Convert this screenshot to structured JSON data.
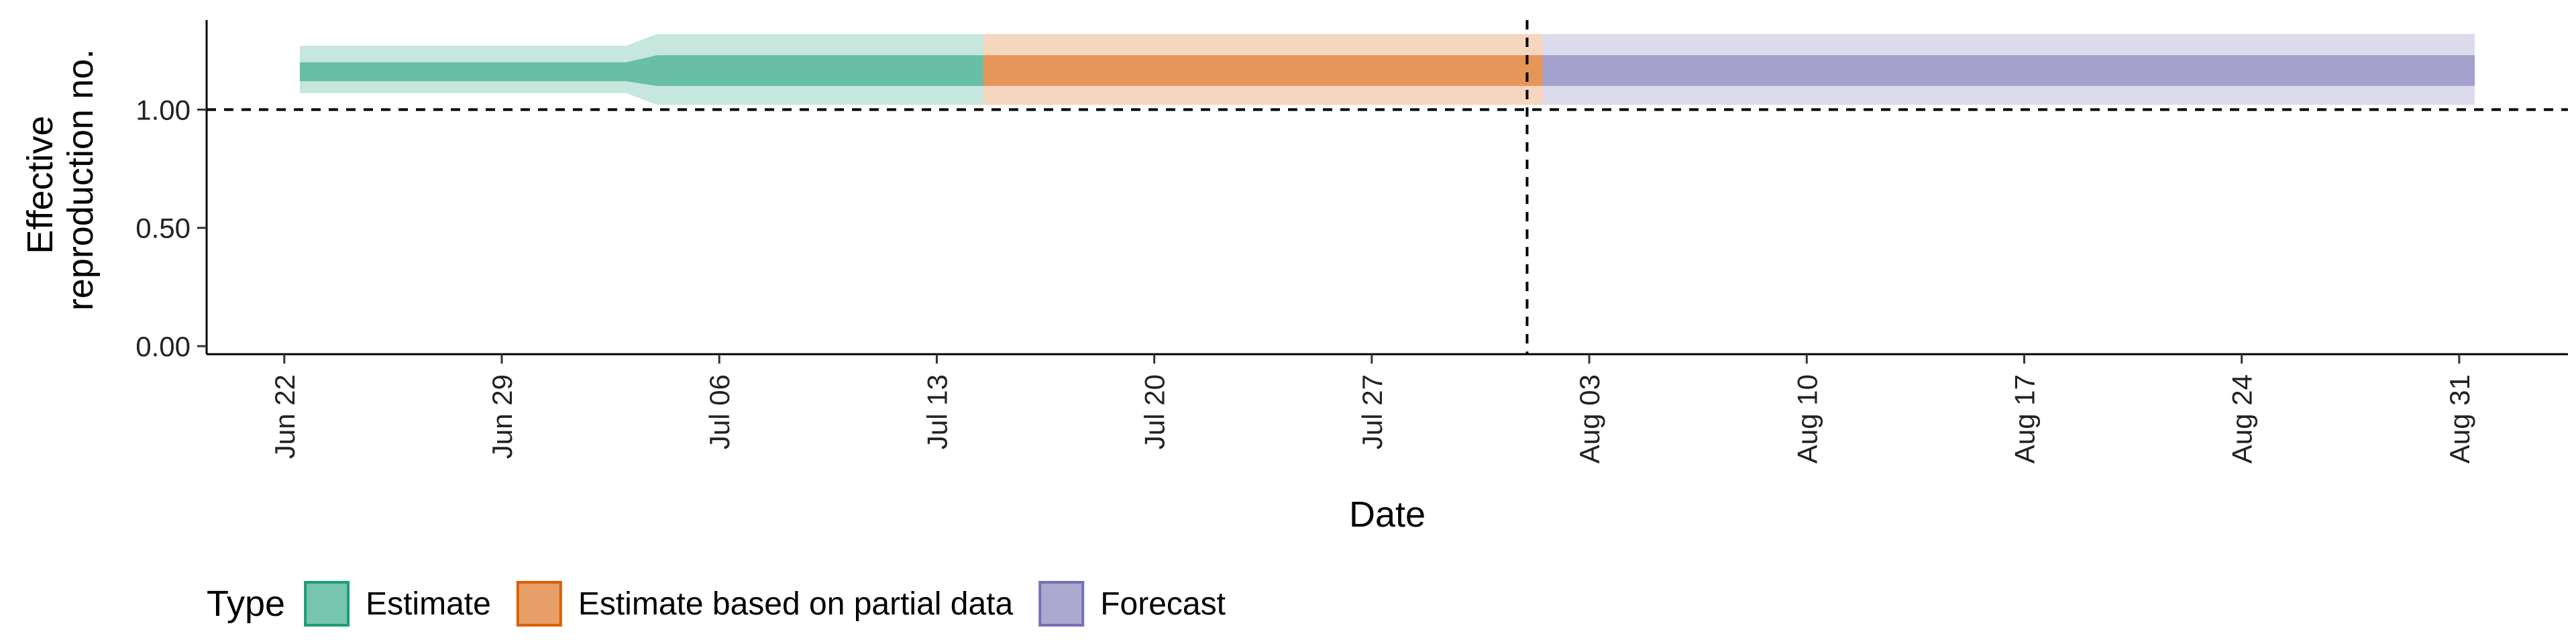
{
  "chart_data": {
    "type": "area",
    "xlabel": "Date",
    "ylabel_lines": [
      "Effective",
      "reproduction no."
    ],
    "ylim": [
      0,
      1.35
    ],
    "y_ticks": [
      0.0,
      0.5,
      1.0
    ],
    "y_tick_labels": [
      "0.00",
      "0.50",
      "1.00"
    ],
    "x_ticks": [
      "2020-06-22",
      "2020-06-29",
      "2020-07-06",
      "2020-07-13",
      "2020-07-20",
      "2020-07-27",
      "2020-08-03",
      "2020-08-10",
      "2020-08-17",
      "2020-08-24",
      "2020-08-31"
    ],
    "x_tick_labels": [
      "Jun 22",
      "Jun 29",
      "Jul 06",
      "Jul 13",
      "Jul 20",
      "Jul 27",
      "Aug 03",
      "Aug 10",
      "Aug 17",
      "Aug 24",
      "Aug 31"
    ],
    "xlim": [
      "2020-06-19.5",
      "2020-09-03.5"
    ],
    "reference_line_y": 1.0,
    "reference_line_date": "2020-08-01",
    "legend_title": "Type",
    "legend_position": "bottom",
    "series": [
      {
        "name": "Estimate",
        "color": "#1b9e77",
        "x": [
          "2020-06-23",
          "2020-07-03",
          "2020-07-04",
          "2020-07-14"
        ],
        "outer_lower": [
          1.07,
          1.07,
          1.02,
          1.02
        ],
        "outer_upper": [
          1.27,
          1.27,
          1.32,
          1.32
        ],
        "inner_lower": [
          1.12,
          1.12,
          1.1,
          1.1
        ],
        "inner_upper": [
          1.2,
          1.2,
          1.23,
          1.23
        ]
      },
      {
        "name": "Estimate based on partial data",
        "color": "#d95f02",
        "x": [
          "2020-07-15",
          "2020-08-01"
        ],
        "outer_lower": [
          1.02,
          1.02
        ],
        "outer_upper": [
          1.32,
          1.32
        ],
        "inner_lower": [
          1.1,
          1.1
        ],
        "inner_upper": [
          1.23,
          1.23
        ]
      },
      {
        "name": "Forecast",
        "color": "#7570b3",
        "x": [
          "2020-08-02",
          "2020-08-31"
        ],
        "outer_lower": [
          1.02,
          1.02
        ],
        "outer_upper": [
          1.32,
          1.32
        ],
        "inner_lower": [
          1.1,
          1.1
        ],
        "inner_upper": [
          1.23,
          1.23
        ]
      }
    ]
  }
}
